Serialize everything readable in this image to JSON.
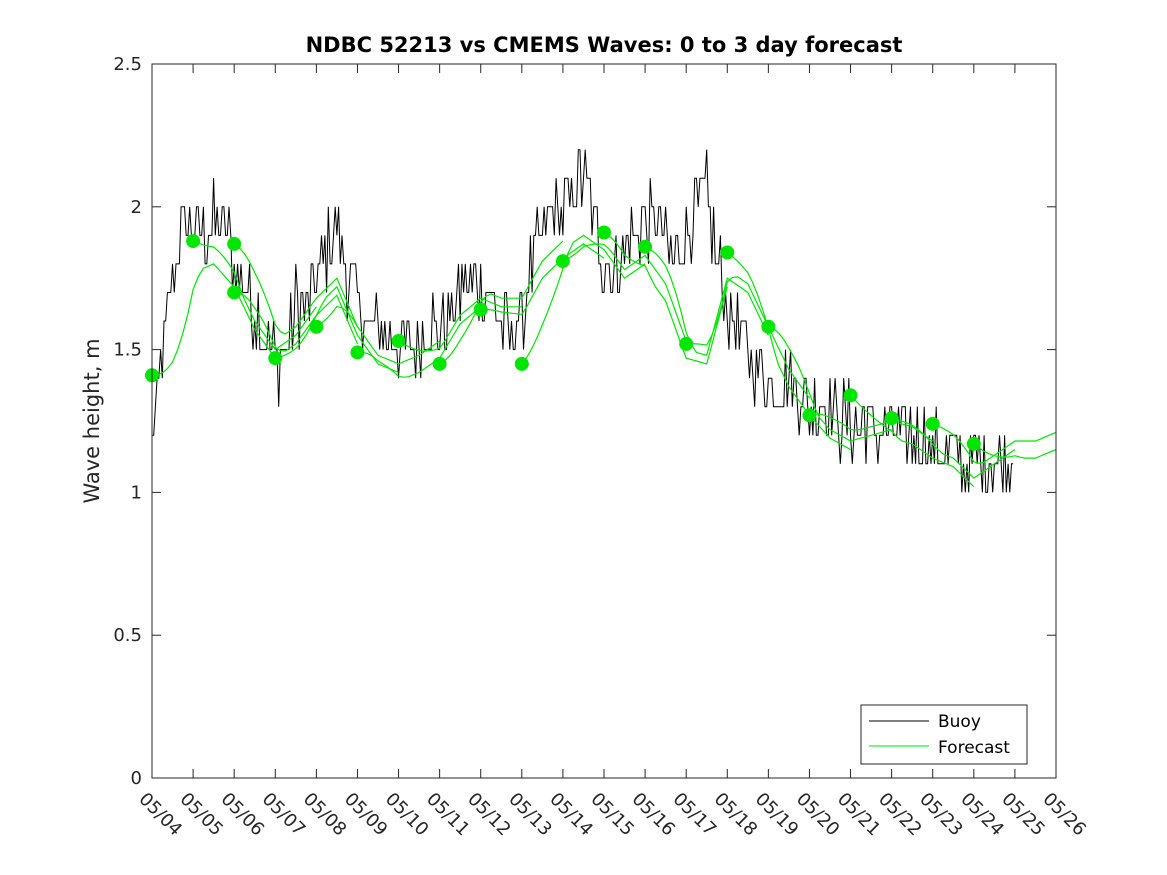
{
  "chart_data": {
    "type": "line",
    "title": "NDBC 52213 vs CMEMS Waves: 0 to 3 day forecast",
    "xlabel": "",
    "ylabel": "Wave height, m",
    "xlim": [
      "05/04",
      "05/26"
    ],
    "ylim": [
      0,
      2.5
    ],
    "x_tick_labels": [
      "05/04",
      "05/05",
      "05/06",
      "05/07",
      "05/08",
      "05/09",
      "05/10",
      "05/11",
      "05/12",
      "05/13",
      "05/14",
      "05/15",
      "05/16",
      "05/17",
      "05/18",
      "05/19",
      "05/20",
      "05/21",
      "05/22",
      "05/23",
      "05/24",
      "05/25",
      "05/26"
    ],
    "y_ticks": [
      0,
      0.5,
      1,
      1.5,
      2,
      2.5
    ],
    "y_tick_labels": [
      "0",
      "0.5",
      "1",
      "1.5",
      "2",
      "2.5"
    ],
    "grid": false,
    "legend": {
      "position": "bottom-right",
      "entries": [
        "Buoy",
        "Forecast"
      ]
    },
    "colors": {
      "buoy": "#000000",
      "forecast": "#00e600"
    },
    "series": [
      {
        "name": "Buoy",
        "values": [
          [
            0,
            1.2
          ],
          [
            0.25,
            1.45
          ],
          [
            0.5,
            1.75
          ],
          [
            0.75,
            1.95
          ],
          [
            1,
            1.95
          ],
          [
            1.25,
            1.9
          ],
          [
            1.5,
            1.95
          ],
          [
            1.75,
            1.95
          ],
          [
            2,
            1.8
          ],
          [
            2.25,
            1.7
          ],
          [
            2.5,
            1.65
          ],
          [
            2.75,
            1.55
          ],
          [
            3,
            1.45
          ],
          [
            3.25,
            1.5
          ],
          [
            3.5,
            1.65
          ],
          [
            3.75,
            1.65
          ],
          [
            4,
            1.75
          ],
          [
            4.25,
            1.85
          ],
          [
            4.5,
            1.95
          ],
          [
            4.75,
            1.75
          ],
          [
            5,
            1.65
          ],
          [
            5.25,
            1.6
          ],
          [
            5.5,
            1.6
          ],
          [
            5.75,
            1.55
          ],
          [
            6,
            1.5
          ],
          [
            6.25,
            1.5
          ],
          [
            6.5,
            1.55
          ],
          [
            6.75,
            1.6
          ],
          [
            7,
            1.55
          ],
          [
            7.25,
            1.6
          ],
          [
            7.5,
            1.7
          ],
          [
            7.75,
            1.75
          ],
          [
            8,
            1.7
          ],
          [
            8.25,
            1.7
          ],
          [
            8.5,
            1.55
          ],
          [
            8.75,
            1.55
          ],
          [
            9,
            1.6
          ],
          [
            9.25,
            1.8
          ],
          [
            9.5,
            1.9
          ],
          [
            9.75,
            1.95
          ],
          [
            10,
            2.0
          ],
          [
            10.25,
            2.05
          ],
          [
            10.5,
            2.1
          ],
          [
            10.75,
            1.95
          ],
          [
            11,
            1.8
          ],
          [
            11.25,
            1.75
          ],
          [
            11.5,
            1.85
          ],
          [
            11.75,
            1.9
          ],
          [
            12,
            1.95
          ],
          [
            12.25,
            1.95
          ],
          [
            12.5,
            1.85
          ],
          [
            12.75,
            1.8
          ],
          [
            13,
            1.9
          ],
          [
            13.25,
            2.0
          ],
          [
            13.5,
            2.05
          ],
          [
            13.75,
            1.8
          ],
          [
            14,
            1.65
          ],
          [
            14.25,
            1.55
          ],
          [
            14.5,
            1.5
          ],
          [
            14.75,
            1.45
          ],
          [
            15,
            1.4
          ],
          [
            15.25,
            1.4
          ],
          [
            15.5,
            1.4
          ],
          [
            15.75,
            1.35
          ],
          [
            16,
            1.3
          ],
          [
            16.25,
            1.3
          ],
          [
            16.5,
            1.3
          ],
          [
            16.75,
            1.25
          ],
          [
            17,
            1.25
          ],
          [
            17.25,
            1.25
          ],
          [
            17.5,
            1.25
          ],
          [
            17.75,
            1.2
          ],
          [
            18,
            1.2
          ],
          [
            18.25,
            1.2
          ],
          [
            18.5,
            1.2
          ],
          [
            18.75,
            1.2
          ],
          [
            19,
            1.15
          ],
          [
            19.25,
            1.15
          ],
          [
            19.5,
            1.15
          ],
          [
            19.75,
            1.1
          ],
          [
            20,
            1.1
          ],
          [
            20.25,
            1.1
          ],
          [
            20.5,
            1.1
          ],
          [
            20.75,
            1.12
          ],
          [
            21,
            1.1
          ]
        ]
      },
      {
        "name": "Forecast",
        "values": [
          [
            0,
            1.41
          ],
          [
            0.5,
            1.55
          ],
          [
            1,
            1.8
          ],
          [
            1.5,
            1.83
          ],
          [
            2,
            1.75
          ],
          [
            2.5,
            1.6
          ],
          [
            3,
            1.5
          ],
          [
            3.5,
            1.55
          ],
          [
            4,
            1.65
          ],
          [
            4.5,
            1.72
          ],
          [
            5,
            1.55
          ],
          [
            5.5,
            1.45
          ],
          [
            6,
            1.42
          ],
          [
            6.5,
            1.45
          ],
          [
            7,
            1.5
          ],
          [
            7.5,
            1.62
          ],
          [
            8,
            1.68
          ],
          [
            8.5,
            1.65
          ],
          [
            9,
            1.65
          ],
          [
            9.5,
            1.78
          ],
          [
            10,
            1.85
          ],
          [
            10.5,
            1.9
          ],
          [
            11,
            1.85
          ],
          [
            11.5,
            1.75
          ],
          [
            12,
            1.8
          ],
          [
            12.5,
            1.7
          ],
          [
            13,
            1.5
          ],
          [
            13.5,
            1.48
          ],
          [
            14,
            1.75
          ],
          [
            14.5,
            1.7
          ],
          [
            15,
            1.55
          ],
          [
            15.5,
            1.4
          ],
          [
            16,
            1.3
          ],
          [
            16.5,
            1.22
          ],
          [
            17,
            1.18
          ],
          [
            17.5,
            1.2
          ],
          [
            18,
            1.22
          ],
          [
            18.5,
            1.2
          ],
          [
            19,
            1.15
          ],
          [
            19.5,
            1.12
          ],
          [
            20,
            1.05
          ],
          [
            20.5,
            1.1
          ],
          [
            21,
            1.15
          ],
          [
            21.5,
            1.15
          ],
          [
            22,
            1.18
          ]
        ]
      }
    ],
    "forecast_markers": [
      {
        "x": 0,
        "y": 1.41
      },
      {
        "x": 1,
        "y": 1.88
      },
      {
        "x": 2,
        "y": 1.87
      },
      {
        "x": 2,
        "y": 1.7
      },
      {
        "x": 3,
        "y": 1.47
      },
      {
        "x": 4,
        "y": 1.58
      },
      {
        "x": 5,
        "y": 1.49
      },
      {
        "x": 6,
        "y": 1.53
      },
      {
        "x": 7,
        "y": 1.45
      },
      {
        "x": 8,
        "y": 1.64
      },
      {
        "x": 9,
        "y": 1.45
      },
      {
        "x": 10,
        "y": 1.81
      },
      {
        "x": 11,
        "y": 1.91
      },
      {
        "x": 12,
        "y": 1.86
      },
      {
        "x": 13,
        "y": 1.52
      },
      {
        "x": 14,
        "y": 1.84
      },
      {
        "x": 15,
        "y": 1.58
      },
      {
        "x": 16,
        "y": 1.27
      },
      {
        "x": 17,
        "y": 1.34
      },
      {
        "x": 18,
        "y": 1.26
      },
      {
        "x": 19,
        "y": 1.24
      },
      {
        "x": 20,
        "y": 1.17
      }
    ]
  }
}
